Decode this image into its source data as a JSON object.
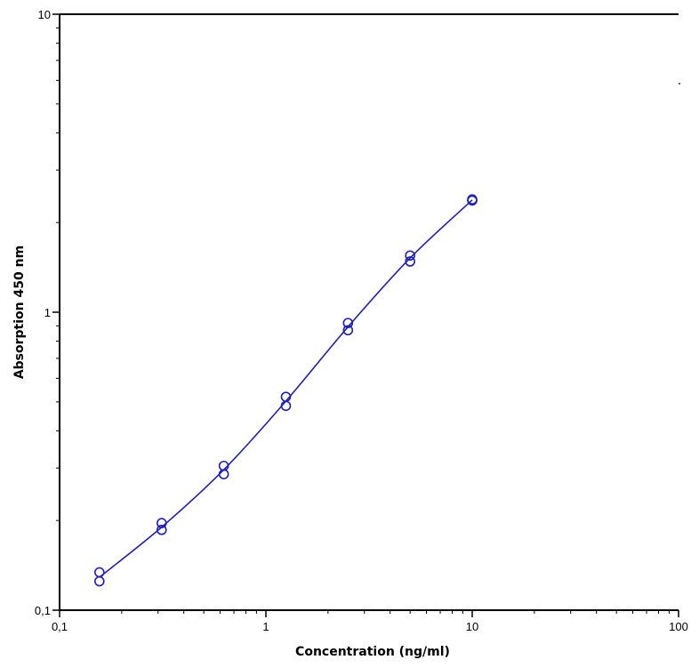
{
  "chart_data": {
    "type": "scatter",
    "title": "",
    "xlabel": "Concentration (ng/ml)",
    "ylabel": "Absorption 450 nm",
    "x_scale": "log",
    "y_scale": "log",
    "xlim": [
      0.1,
      100
    ],
    "ylim": [
      0.1,
      10
    ],
    "x_ticks": [
      {
        "value": 0.1,
        "label": "0,1"
      },
      {
        "value": 1,
        "label": "1"
      },
      {
        "value": 10,
        "label": "10"
      },
      {
        "value": 100,
        "label": "100"
      }
    ],
    "y_ticks": [
      {
        "value": 0.1,
        "label": "0,1"
      },
      {
        "value": 1,
        "label": "1"
      },
      {
        "value": 10,
        "label": "10"
      }
    ],
    "grid": false,
    "legend": false,
    "series": [
      {
        "color": "#1f1fbf",
        "points": [
          {
            "x": 0.156,
            "y": 0.134
          },
          {
            "x": 0.156,
            "y": 0.125
          },
          {
            "x": 0.3125,
            "y": 0.196
          },
          {
            "x": 0.3125,
            "y": 0.186
          },
          {
            "x": 0.625,
            "y": 0.305
          },
          {
            "x": 0.625,
            "y": 0.286
          },
          {
            "x": 1.25,
            "y": 0.52
          },
          {
            "x": 1.25,
            "y": 0.485
          },
          {
            "x": 2.5,
            "y": 0.92
          },
          {
            "x": 2.5,
            "y": 0.87
          },
          {
            "x": 5,
            "y": 1.55
          },
          {
            "x": 5,
            "y": 1.48
          },
          {
            "x": 10,
            "y": 2.39
          },
          {
            "x": 10,
            "y": 2.37
          }
        ],
        "fit_curve": [
          {
            "x": 0.156,
            "y": 0.129
          },
          {
            "x": 0.3125,
            "y": 0.19
          },
          {
            "x": 0.625,
            "y": 0.296
          },
          {
            "x": 1.25,
            "y": 0.503
          },
          {
            "x": 2.5,
            "y": 0.893
          },
          {
            "x": 5,
            "y": 1.52
          },
          {
            "x": 10,
            "y": 2.38
          }
        ]
      }
    ]
  }
}
